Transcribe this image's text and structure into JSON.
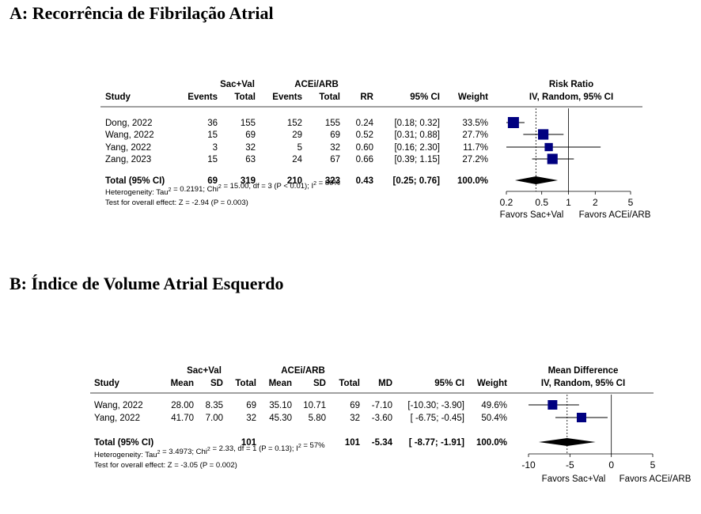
{
  "panels": [
    {
      "title": "A: Recorrência de Fibrilação Atrial",
      "group1_label": "Sac+Val",
      "group2_label": "ACEi/ARB",
      "headers": {
        "study": "Study",
        "g1_events": "Events",
        "g1_total": "Total",
        "g2_events": "Events",
        "g2_total": "Total",
        "effect": "RR",
        "ci": "95% CI",
        "weight": "Weight",
        "plot_title1": "Risk Ratio",
        "plot_title2": "IV, Random, 95% CI"
      },
      "rows": [
        {
          "study": "Dong, 2022",
          "g1_events": "36",
          "g1_total": "155",
          "g2_events": "152",
          "g2_total": "155",
          "effect": "0.24",
          "ci": "[0.18; 0.32]",
          "weight": "33.5%"
        },
        {
          "study": "Wang, 2022",
          "g1_events": "15",
          "g1_total": "69",
          "g2_events": "29",
          "g2_total": "69",
          "effect": "0.52",
          "ci": "[0.31; 0.88]",
          "weight": "27.7%"
        },
        {
          "study": "Yang,  2022",
          "g1_events": "3",
          "g1_total": "32",
          "g2_events": "5",
          "g2_total": "32",
          "effect": "0.60",
          "ci": "[0.16; 2.30]",
          "weight": "11.7%"
        },
        {
          "study": "Zang, 2023",
          "g1_events": "15",
          "g1_total": "63",
          "g2_events": "24",
          "g2_total": "67",
          "effect": "0.66",
          "ci": "[0.39; 1.15]",
          "weight": "27.2%"
        }
      ],
      "total": {
        "study": "Total (95% CI)",
        "g1_events": "69",
        "g1_total": "319",
        "g2_events": "210",
        "g2_total": "323",
        "effect": "0.43",
        "ci": "[0.25; 0.76]",
        "weight": "100.0%"
      },
      "heterogeneity": "Heterogeneity: Tau² = 0.2191; Chi² = 15.00, df = 3 (P < 0.01); I² = 80%",
      "overall_test": "Test for overall effect: Z = -2.94 (P = 0.003)",
      "favors_left": "Favors Sac+Val",
      "favors_right": "Favors ACEi/ARB"
    },
    {
      "title": "B: Índice de Volume Atrial Esquerdo",
      "group1_label": "Sac+Val",
      "group2_label": "ACEi/ARB",
      "headers": {
        "study": "Study",
        "g1_mean": "Mean",
        "g1_sd": "SD",
        "g1_total": "Total",
        "g2_mean": "Mean",
        "g2_sd": "SD",
        "g2_total": "Total",
        "effect": "MD",
        "ci": "95% CI",
        "weight": "Weight",
        "plot_title1": "Mean Difference",
        "plot_title2": "IV, Random, 95% CI"
      },
      "rows": [
        {
          "study": "Wang, 2022",
          "g1_mean": "28.00",
          "g1_sd": "8.35",
          "g1_total": "69",
          "g2_mean": "35.10",
          "g2_sd": "10.71",
          "g2_total": "69",
          "effect": "-7.10",
          "ci": "[-10.30; -3.90]",
          "weight": "49.6%"
        },
        {
          "study": "Yang, 2022",
          "g1_mean": "41.70",
          "g1_sd": "7.00",
          "g1_total": "32",
          "g2_mean": "45.30",
          "g2_sd": "5.80",
          "g2_total": "32",
          "effect": "-3.60",
          "ci": "[ -6.75; -0.45]",
          "weight": "50.4%"
        }
      ],
      "total": {
        "study": "Total (95% CI)",
        "g1_total": "101",
        "g2_total": "101",
        "effect": "-5.34",
        "ci": "[ -8.77; -1.91]",
        "weight": "100.0%"
      },
      "heterogeneity": "Heterogeneity: Tau² = 3.4973; Chi² = 2.33, df = 1 (P = 0.13); I² = 57%",
      "overall_test": "Test for overall effect: Z = -3.05 (P = 0.002)",
      "favors_left": "Favors Sac+Val",
      "favors_right": "Favors ACEi/ARB"
    }
  ],
  "chart_data": [
    {
      "type": "forest",
      "title": "Risk Ratio",
      "scale": "log",
      "xlim": [
        0.2,
        5
      ],
      "ticks": [
        "0.2",
        "0.5",
        "1",
        "2",
        "5"
      ],
      "tick_values": [
        0.2,
        0.5,
        1,
        2,
        5
      ],
      "null_line": 1,
      "studies": [
        {
          "name": "Dong, 2022",
          "estimate": 0.24,
          "lower": 0.18,
          "upper": 0.32,
          "weight": 33.5
        },
        {
          "name": "Wang, 2022",
          "estimate": 0.52,
          "lower": 0.31,
          "upper": 0.88,
          "weight": 27.7
        },
        {
          "name": "Yang,  2022",
          "estimate": 0.6,
          "lower": 0.16,
          "upper": 2.3,
          "weight": 11.7
        },
        {
          "name": "Zang, 2023",
          "estimate": 0.66,
          "lower": 0.39,
          "upper": 1.15,
          "weight": 27.2
        }
      ],
      "pooled": {
        "estimate": 0.43,
        "lower": 0.25,
        "upper": 0.76
      }
    },
    {
      "type": "forest",
      "title": "Mean Difference",
      "scale": "linear",
      "xlim": [
        -10,
        5
      ],
      "ticks": [
        "-10",
        "-5",
        "0",
        "5"
      ],
      "tick_values": [
        -10,
        -5,
        0,
        5
      ],
      "null_line": 0,
      "studies": [
        {
          "name": "Wang, 2022",
          "estimate": -7.1,
          "lower": -10.3,
          "upper": -3.9,
          "weight": 49.6
        },
        {
          "name": "Yang, 2022",
          "estimate": -3.6,
          "lower": -6.75,
          "upper": -0.45,
          "weight": 50.4
        }
      ],
      "pooled": {
        "estimate": -5.34,
        "lower": -8.77,
        "upper": -1.91
      }
    }
  ],
  "colors": {
    "square": "#000080",
    "diamond": "#000000",
    "line": "#000000"
  }
}
